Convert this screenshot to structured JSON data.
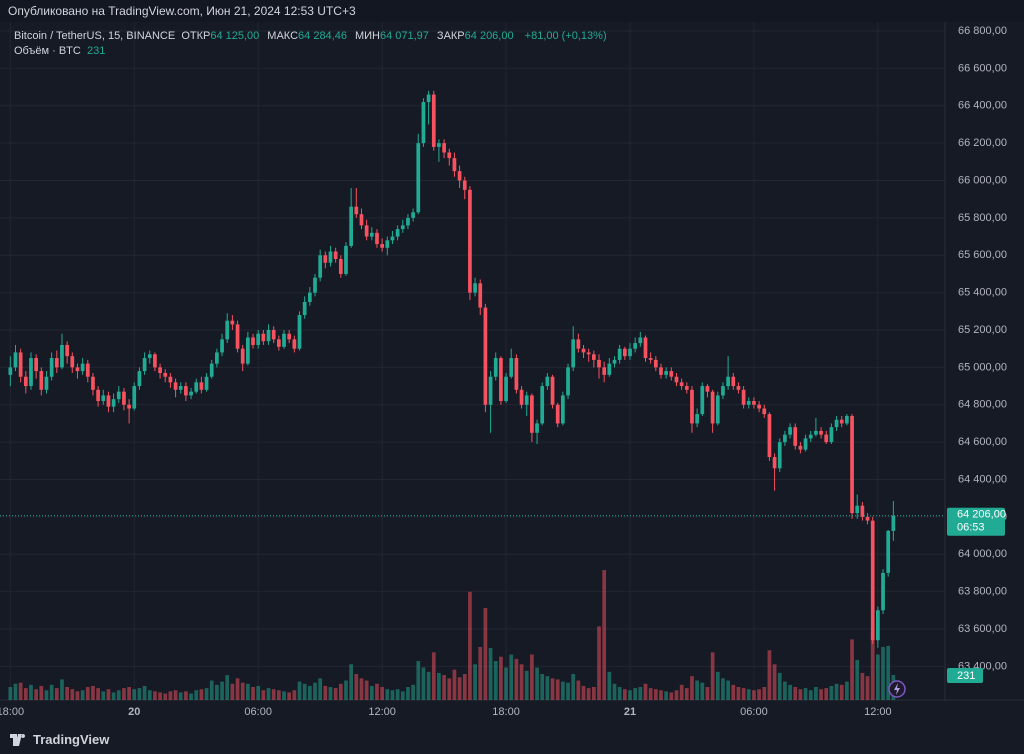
{
  "header": {
    "published": "Опубликовано на TradingView.com, Июн 21, 2024 12:53 UTC+3"
  },
  "chart_data": {
    "type": "candlestick",
    "title": "Bitcoin / TetherUS, 15, BINANCE",
    "ohlc_labels": [
      {
        "name": "ОТКР",
        "label": "64 125,00"
      },
      {
        "name": "МАКС",
        "label": "64 284,46"
      },
      {
        "name": "МИН",
        "label": "64 071,97"
      },
      {
        "name": "ЗАКР",
        "label": "64 206,00"
      }
    ],
    "change_label": "+81,00 (+0,13%)",
    "volume_title": "Объём · BTC",
    "up_color": "#22ab94",
    "down_color": "#f7525f",
    "last_price": {
      "value": 64206,
      "label": "64 206,00",
      "countdown": "06:53"
    },
    "ylim": [
      63220,
      66966
    ],
    "volume_ylim": [
      0,
      1700
    ],
    "xlim": [
      -2,
      181
    ],
    "yticks": [
      {
        "value": 63400,
        "label": "63 400,00"
      },
      {
        "value": 63600,
        "label": "63 600,00"
      },
      {
        "value": 63800,
        "label": "63 800,00"
      },
      {
        "value": 64000,
        "label": "64 000,00"
      },
      {
        "value": 64200,
        "label": "64 200,00"
      },
      {
        "value": 64400,
        "label": "64 400,00"
      },
      {
        "value": 64600,
        "label": "64 600,00"
      },
      {
        "value": 64800,
        "label": "64 800,00"
      },
      {
        "value": 65000,
        "label": "65 000,00"
      },
      {
        "value": 65200,
        "label": "65 200,00"
      },
      {
        "value": 65400,
        "label": "65 400,00"
      },
      {
        "value": 65600,
        "label": "65 600,00"
      },
      {
        "value": 65800,
        "label": "65 800,00"
      },
      {
        "value": 66000,
        "label": "66 000,00"
      },
      {
        "value": 66200,
        "label": "66 200,00"
      },
      {
        "value": 66400,
        "label": "66 400,00"
      },
      {
        "value": 66600,
        "label": "66 600,00"
      },
      {
        "value": 66800,
        "label": "66 800,00"
      }
    ],
    "xticks": [
      {
        "value": 0,
        "label": "18:00"
      },
      {
        "value": 24,
        "label": "20"
      },
      {
        "value": 48,
        "label": "06:00"
      },
      {
        "value": 72,
        "label": "12:00"
      },
      {
        "value": 96,
        "label": "18:00"
      },
      {
        "value": 120,
        "label": "21"
      },
      {
        "value": 144,
        "label": "06:00"
      },
      {
        "value": 168,
        "label": "12:00"
      }
    ],
    "candles": [
      [
        64960,
        65060,
        64900,
        65000,
        120
      ],
      [
        65000,
        65120,
        64980,
        65080,
        150
      ],
      [
        65080,
        65100,
        64920,
        64950,
        160
      ],
      [
        64950,
        64980,
        64860,
        64900,
        110
      ],
      [
        64900,
        65080,
        64880,
        65050,
        140
      ],
      [
        65050,
        65070,
        64940,
        64980,
        100
      ],
      [
        64980,
        65000,
        64850,
        64880,
        130
      ],
      [
        64880,
        64980,
        64860,
        64950,
        90
      ],
      [
        64950,
        65080,
        64930,
        65050,
        140
      ],
      [
        65050,
        65090,
        64970,
        65000,
        110
      ],
      [
        65000,
        65180,
        64990,
        65120,
        190
      ],
      [
        65120,
        65140,
        65020,
        65060,
        120
      ],
      [
        65060,
        65080,
        64970,
        65000,
        100
      ],
      [
        65000,
        65020,
        64940,
        64980,
        80
      ],
      [
        64980,
        65050,
        64960,
        65020,
        90
      ],
      [
        65020,
        65040,
        64920,
        64950,
        120
      ],
      [
        64950,
        64970,
        64850,
        64880,
        130
      ],
      [
        64880,
        64900,
        64790,
        64820,
        110
      ],
      [
        64820,
        64880,
        64800,
        64850,
        80
      ],
      [
        64850,
        64870,
        64760,
        64790,
        100
      ],
      [
        64790,
        64860,
        64760,
        64830,
        70
      ],
      [
        64830,
        64900,
        64810,
        64870,
        90
      ],
      [
        64870,
        64890,
        64770,
        64800,
        110
      ],
      [
        64800,
        64830,
        64700,
        64780,
        120
      ],
      [
        64780,
        64920,
        64770,
        64900,
        100
      ],
      [
        64900,
        65000,
        64880,
        64980,
        110
      ],
      [
        64980,
        65080,
        64960,
        65050,
        130
      ],
      [
        65050,
        65090,
        65020,
        65070,
        90
      ],
      [
        65070,
        65080,
        64980,
        65000,
        80
      ],
      [
        65000,
        65020,
        64940,
        64970,
        70
      ],
      [
        64970,
        64990,
        64920,
        64950,
        60
      ],
      [
        64950,
        64970,
        64890,
        64920,
        80
      ],
      [
        64920,
        64940,
        64840,
        64880,
        90
      ],
      [
        64880,
        64920,
        64860,
        64900,
        70
      ],
      [
        64900,
        64920,
        64820,
        64850,
        80
      ],
      [
        64850,
        64890,
        64830,
        64870,
        60
      ],
      [
        64870,
        64940,
        64860,
        64920,
        90
      ],
      [
        64920,
        64950,
        64860,
        64880,
        100
      ],
      [
        64880,
        64970,
        64870,
        64950,
        110
      ],
      [
        64950,
        65040,
        64940,
        65020,
        180
      ],
      [
        65020,
        65100,
        65000,
        65080,
        140
      ],
      [
        65080,
        65180,
        65060,
        65150,
        170
      ],
      [
        65150,
        65290,
        65130,
        65250,
        230
      ],
      [
        65250,
        65280,
        65200,
        65230,
        150
      ],
      [
        65230,
        65250,
        65080,
        65100,
        200
      ],
      [
        65100,
        65120,
        64980,
        65020,
        160
      ],
      [
        65020,
        65190,
        65010,
        65160,
        150
      ],
      [
        65160,
        65180,
        65100,
        65120,
        120
      ],
      [
        65120,
        65200,
        65100,
        65180,
        130
      ],
      [
        65180,
        65200,
        65120,
        65140,
        90
      ],
      [
        65140,
        65230,
        65120,
        65200,
        110
      ],
      [
        65200,
        65220,
        65130,
        65150,
        100
      ],
      [
        65150,
        65170,
        65090,
        65110,
        90
      ],
      [
        65110,
        65200,
        65100,
        65180,
        80
      ],
      [
        65180,
        65200,
        65130,
        65150,
        70
      ],
      [
        65150,
        65170,
        65080,
        65100,
        90
      ],
      [
        65100,
        65300,
        65090,
        65280,
        170
      ],
      [
        65280,
        65380,
        65260,
        65350,
        150
      ],
      [
        65350,
        65430,
        65330,
        65400,
        130
      ],
      [
        65400,
        65500,
        65380,
        65480,
        160
      ],
      [
        65480,
        65630,
        65460,
        65600,
        200
      ],
      [
        65600,
        65620,
        65530,
        65560,
        130
      ],
      [
        65560,
        65650,
        65540,
        65620,
        120
      ],
      [
        65620,
        65640,
        65560,
        65580,
        110
      ],
      [
        65580,
        65600,
        65480,
        65500,
        150
      ],
      [
        65500,
        65670,
        65490,
        65650,
        180
      ],
      [
        65650,
        65960,
        65640,
        65860,
        330
      ],
      [
        65860,
        65960,
        65800,
        65820,
        240
      ],
      [
        65820,
        65850,
        65740,
        65760,
        200
      ],
      [
        65760,
        65790,
        65680,
        65700,
        180
      ],
      [
        65700,
        65750,
        65680,
        65720,
        130
      ],
      [
        65720,
        65740,
        65640,
        65660,
        150
      ],
      [
        65660,
        65690,
        65620,
        65640,
        120
      ],
      [
        65640,
        65700,
        65600,
        65680,
        100
      ],
      [
        65680,
        65730,
        65660,
        65700,
        90
      ],
      [
        65700,
        65760,
        65680,
        65740,
        100
      ],
      [
        65740,
        65790,
        65720,
        65760,
        80
      ],
      [
        65760,
        65820,
        65740,
        65800,
        120
      ],
      [
        65800,
        65850,
        65780,
        65830,
        140
      ],
      [
        65830,
        66250,
        65820,
        66200,
        360
      ],
      [
        66200,
        66440,
        66180,
        66420,
        300
      ],
      [
        66420,
        66480,
        66300,
        66460,
        260
      ],
      [
        66460,
        66480,
        66160,
        66180,
        440
      ],
      [
        66180,
        66220,
        66100,
        66200,
        250
      ],
      [
        66200,
        66220,
        66120,
        66150,
        230
      ],
      [
        66150,
        66170,
        66080,
        66120,
        200
      ],
      [
        66120,
        66150,
        66020,
        66050,
        280
      ],
      [
        66050,
        66080,
        65960,
        66000,
        210
      ],
      [
        66000,
        66020,
        65900,
        65950,
        240
      ],
      [
        65950,
        65970,
        65360,
        65400,
        1000
      ],
      [
        65400,
        65480,
        65380,
        65450,
        330
      ],
      [
        65450,
        65470,
        65280,
        65320,
        490
      ],
      [
        65320,
        65340,
        64760,
        64800,
        850
      ],
      [
        64800,
        64980,
        64650,
        64950,
        480
      ],
      [
        64950,
        65080,
        64930,
        65050,
        360
      ],
      [
        65050,
        65060,
        64800,
        64820,
        400
      ],
      [
        64820,
        64970,
        64810,
        64950,
        300
      ],
      [
        64950,
        65100,
        64940,
        65050,
        420
      ],
      [
        65050,
        65070,
        64860,
        64880,
        380
      ],
      [
        64880,
        64900,
        64780,
        64800,
        330
      ],
      [
        64800,
        64870,
        64740,
        64850,
        270
      ],
      [
        64850,
        64860,
        64600,
        64650,
        420
      ],
      [
        64650,
        64720,
        64590,
        64700,
        300
      ],
      [
        64700,
        64920,
        64690,
        64900,
        240
      ],
      [
        64900,
        64970,
        64880,
        64950,
        220
      ],
      [
        64950,
        64960,
        64780,
        64800,
        200
      ],
      [
        64800,
        64810,
        64680,
        64700,
        190
      ],
      [
        64700,
        64870,
        64690,
        64850,
        170
      ],
      [
        64850,
        65020,
        64830,
        65000,
        160
      ],
      [
        65000,
        65220,
        64980,
        65150,
        240
      ],
      [
        65150,
        65180,
        65080,
        65100,
        180
      ],
      [
        65100,
        65120,
        65050,
        65080,
        130
      ],
      [
        65080,
        65100,
        65030,
        65070,
        110
      ],
      [
        65070,
        65090,
        65000,
        65040,
        120
      ],
      [
        65040,
        65070,
        64940,
        65000,
        680
      ],
      [
        65000,
        65030,
        64920,
        64960,
        1200
      ],
      [
        64960,
        65050,
        64950,
        65020,
        260
      ],
      [
        65020,
        65060,
        65000,
        65040,
        150
      ],
      [
        65040,
        65120,
        65020,
        65100,
        120
      ],
      [
        65100,
        65110,
        65040,
        65060,
        100
      ],
      [
        65060,
        65130,
        65040,
        65100,
        90
      ],
      [
        65100,
        65160,
        65080,
        65130,
        110
      ],
      [
        65130,
        65190,
        65110,
        65160,
        120
      ],
      [
        65160,
        65170,
        65030,
        65050,
        150
      ],
      [
        65050,
        65080,
        65020,
        65040,
        110
      ],
      [
        65040,
        65060,
        64980,
        65000,
        100
      ],
      [
        65000,
        65020,
        64940,
        64960,
        90
      ],
      [
        64960,
        65000,
        64940,
        64980,
        80
      ],
      [
        64980,
        65000,
        64930,
        64950,
        70
      ],
      [
        64950,
        64970,
        64900,
        64920,
        90
      ],
      [
        64920,
        64940,
        64880,
        64900,
        140
      ],
      [
        64900,
        64920,
        64860,
        64880,
        110
      ],
      [
        64880,
        64900,
        64650,
        64700,
        220
      ],
      [
        64700,
        64780,
        64680,
        64750,
        180
      ],
      [
        64750,
        64920,
        64740,
        64900,
        160
      ],
      [
        64900,
        64910,
        64840,
        64870,
        120
      ],
      [
        64870,
        64880,
        64650,
        64700,
        440
      ],
      [
        64700,
        64870,
        64690,
        64850,
        260
      ],
      [
        64850,
        64920,
        64830,
        64900,
        200
      ],
      [
        64900,
        65060,
        64880,
        64950,
        180
      ],
      [
        64950,
        64970,
        64880,
        64900,
        140
      ],
      [
        64900,
        64920,
        64860,
        64880,
        120
      ],
      [
        64880,
        64900,
        64780,
        64800,
        110
      ],
      [
        64800,
        64840,
        64780,
        64820,
        100
      ],
      [
        64820,
        64840,
        64780,
        64800,
        90
      ],
      [
        64800,
        64820,
        64760,
        64780,
        100
      ],
      [
        64780,
        64800,
        64730,
        64750,
        120
      ],
      [
        64750,
        64760,
        64500,
        64520,
        460
      ],
      [
        64520,
        64540,
        64340,
        64460,
        330
      ],
      [
        64460,
        64620,
        64440,
        64600,
        250
      ],
      [
        64600,
        64660,
        64580,
        64640,
        170
      ],
      [
        64640,
        64700,
        64620,
        64680,
        140
      ],
      [
        64680,
        64700,
        64560,
        64580,
        120
      ],
      [
        64580,
        64600,
        64540,
        64560,
        100
      ],
      [
        64560,
        64640,
        64550,
        64620,
        110
      ],
      [
        64620,
        64660,
        64600,
        64640,
        90
      ],
      [
        64640,
        64730,
        64630,
        64660,
        120
      ],
      [
        64660,
        64680,
        64620,
        64640,
        100
      ],
      [
        64640,
        64660,
        64590,
        64600,
        110
      ],
      [
        64600,
        64700,
        64590,
        64680,
        130
      ],
      [
        64680,
        64740,
        64660,
        64720,
        150
      ],
      [
        64720,
        64740,
        64680,
        64700,
        140
      ],
      [
        64700,
        64750,
        64690,
        64740,
        170
      ],
      [
        64740,
        64750,
        64190,
        64220,
        560
      ],
      [
        64220,
        64320,
        64190,
        64260,
        370
      ],
      [
        64260,
        64280,
        64180,
        64200,
        250
      ],
      [
        64200,
        64220,
        64160,
        64180,
        220
      ],
      [
        64180,
        64200,
        63520,
        63540,
        600
      ],
      [
        63540,
        63720,
        63500,
        63700,
        420
      ],
      [
        63700,
        63920,
        63680,
        63900,
        490
      ],
      [
        63900,
        64130,
        63880,
        64125,
        500
      ],
      [
        64125,
        64284.46,
        64071.97,
        64206,
        231
      ]
    ]
  },
  "footer": {
    "brand": "TradingView"
  }
}
